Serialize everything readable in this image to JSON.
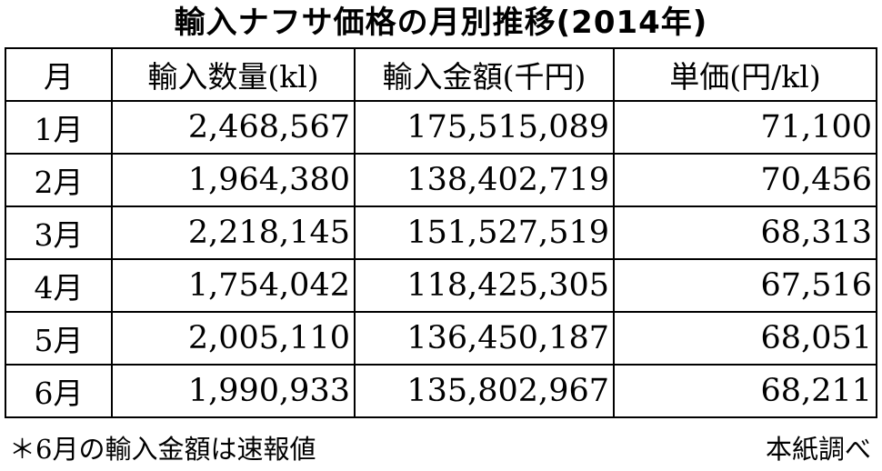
{
  "title": "輸入ナフサ価格の月別推移(2014年)",
  "table": {
    "headers": [
      "月",
      "輸入数量(kl)",
      "輸入金額(千円)",
      "単価(円/kl)"
    ],
    "rows": [
      {
        "month": "1月",
        "quantity": "2,468,567",
        "amount": "175,515,089",
        "unit_price": "71,100"
      },
      {
        "month": "2月",
        "quantity": "1,964,380",
        "amount": "138,402,719",
        "unit_price": "70,456"
      },
      {
        "month": "3月",
        "quantity": "2,218,145",
        "amount": "151,527,519",
        "unit_price": "68,313"
      },
      {
        "month": "4月",
        "quantity": "1,754,042",
        "amount": "118,425,305",
        "unit_price": "67,516"
      },
      {
        "month": "5月",
        "quantity": "2,005,110",
        "amount": "136,450,187",
        "unit_price": "68,051"
      },
      {
        "month": "6月",
        "quantity": "1,990,933",
        "amount": "135,802,967",
        "unit_price": "68,211"
      }
    ]
  },
  "footnote": "＊6月の輸入金額は速報値",
  "source": "本紙調べ"
}
